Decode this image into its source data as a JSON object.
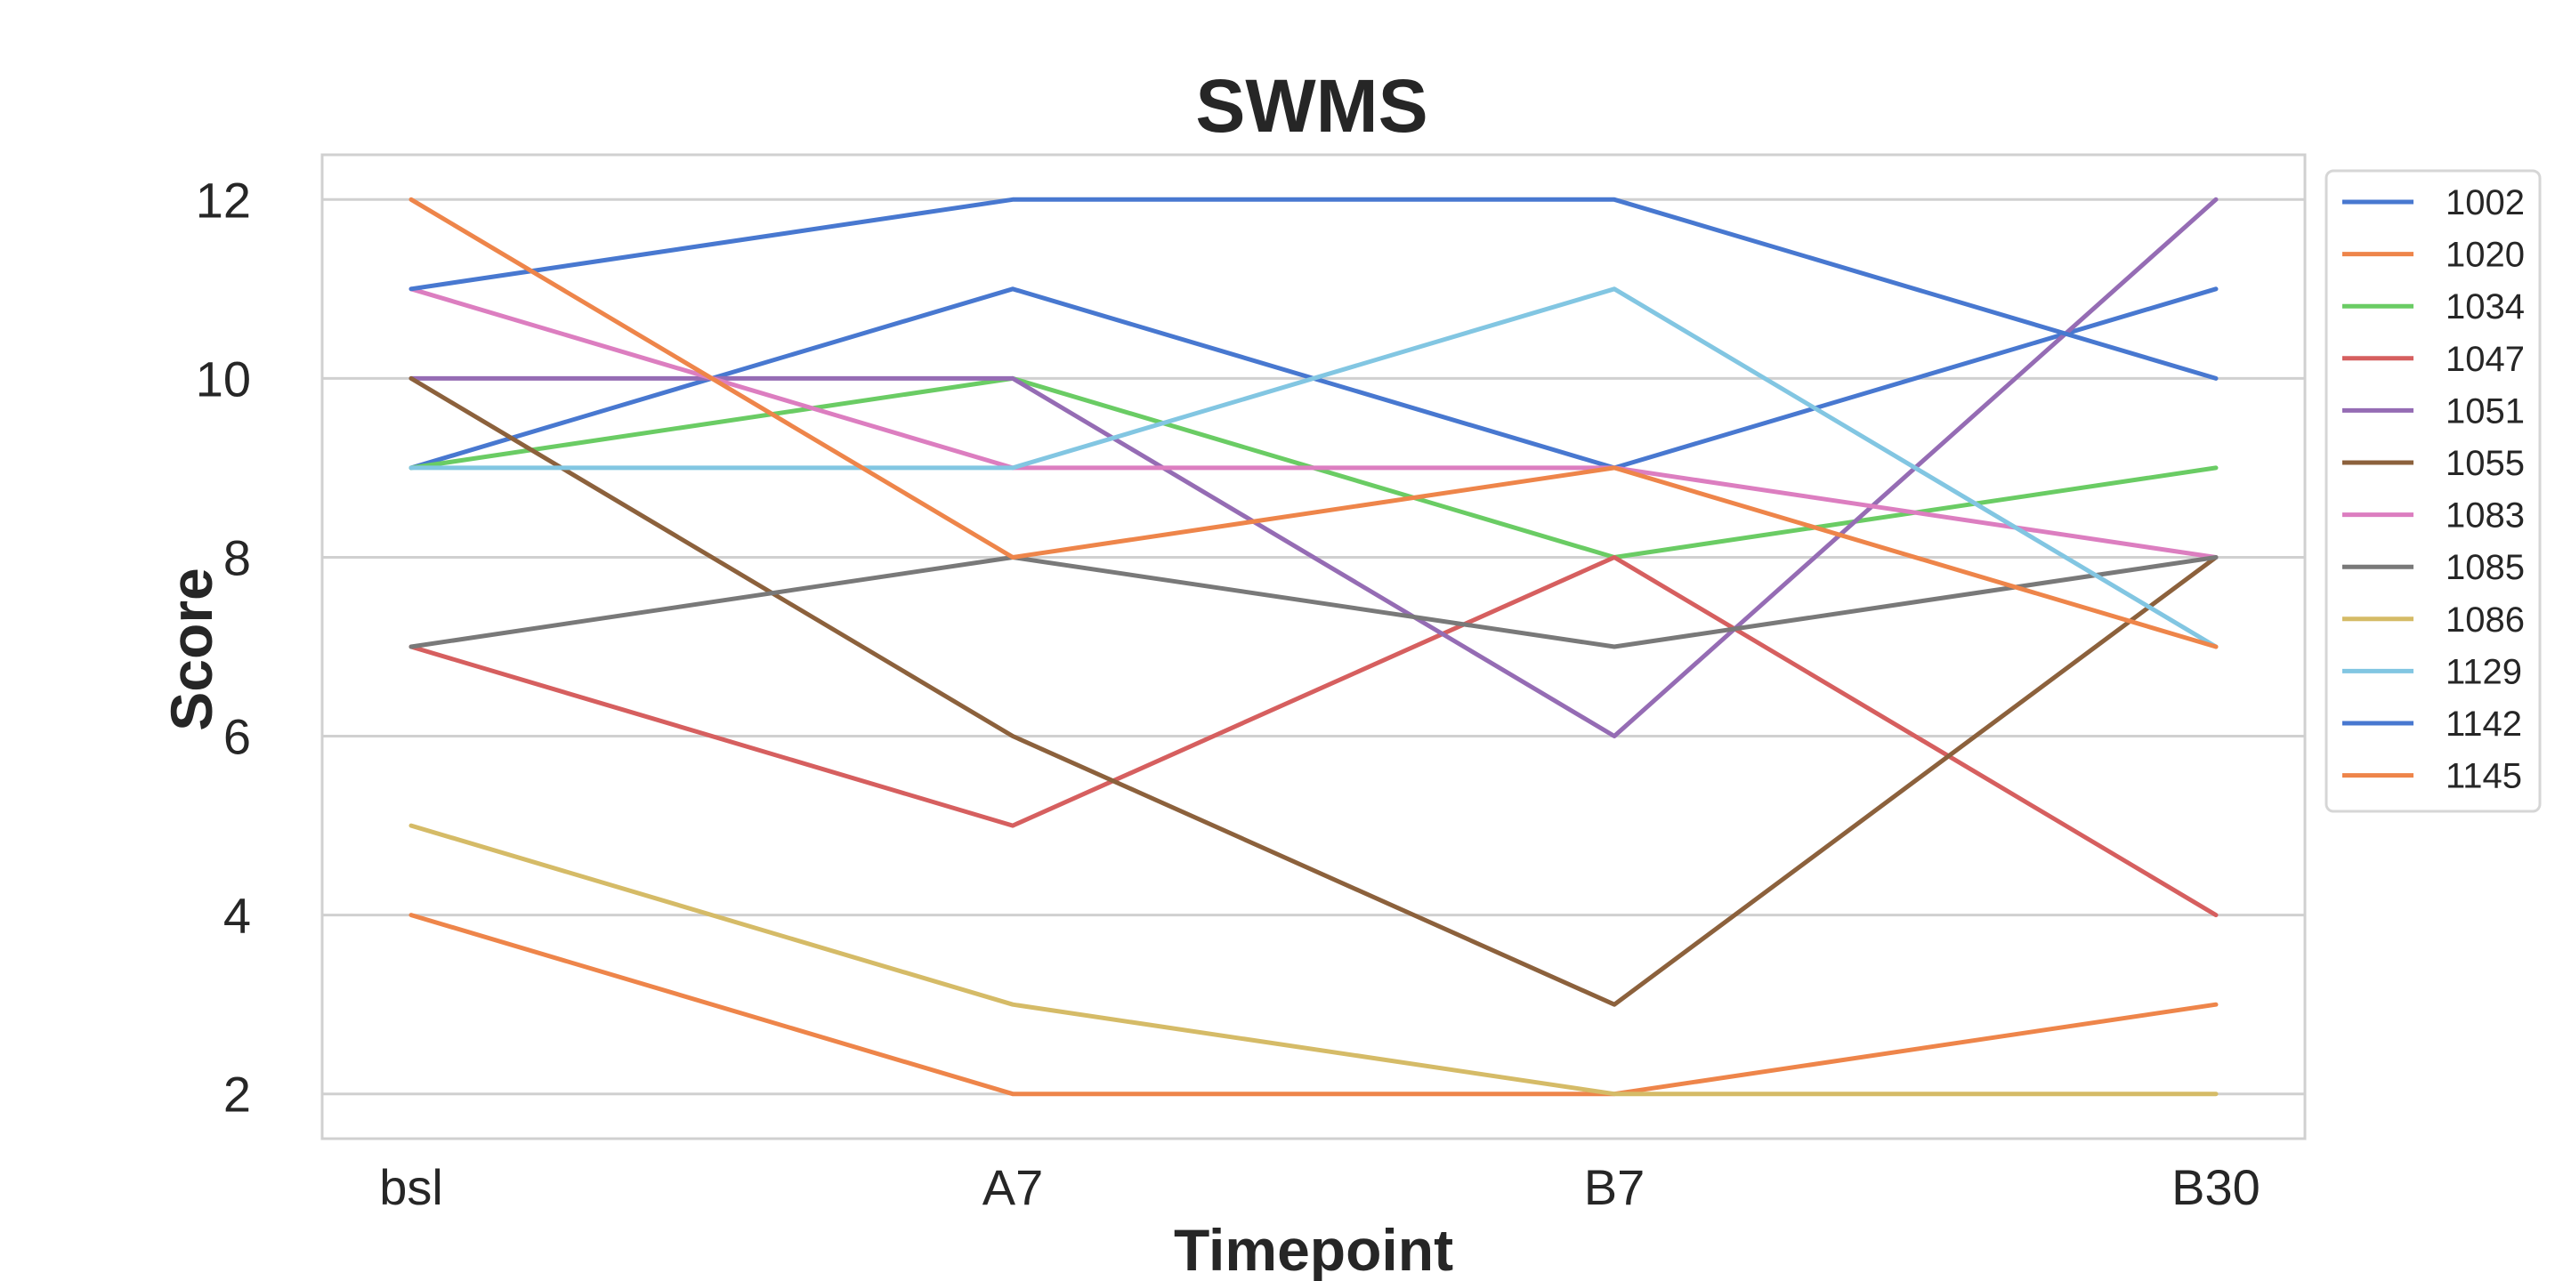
{
  "chart_data": {
    "type": "line",
    "title": "SWMS",
    "xlabel": "Timepoint",
    "ylabel": "Score",
    "categories": [
      "bsl",
      "A7",
      "B7",
      "B30"
    ],
    "ylim": [
      1.5,
      12.5
    ],
    "yticks": [
      2,
      4,
      6,
      8,
      10,
      12
    ],
    "grid": true,
    "legend_position": "right-outside-top",
    "series": [
      {
        "name": "1002",
        "color": "#4878d0",
        "values": [
          9,
          11,
          9,
          11
        ]
      },
      {
        "name": "1020",
        "color": "#ee854a",
        "values": [
          4,
          2,
          2,
          3
        ]
      },
      {
        "name": "1034",
        "color": "#6acc64",
        "values": [
          9,
          10,
          8,
          9
        ]
      },
      {
        "name": "1047",
        "color": "#d65f5f",
        "values": [
          7,
          5,
          8,
          4
        ]
      },
      {
        "name": "1051",
        "color": "#956cb4",
        "values": [
          10,
          10,
          6,
          12
        ]
      },
      {
        "name": "1055",
        "color": "#8c613c",
        "values": [
          10,
          6,
          3,
          8
        ]
      },
      {
        "name": "1083",
        "color": "#dc7ec0",
        "values": [
          11,
          9,
          9,
          8
        ]
      },
      {
        "name": "1085",
        "color": "#797979",
        "values": [
          7,
          8,
          7,
          8
        ]
      },
      {
        "name": "1086",
        "color": "#d5bb67",
        "values": [
          5,
          3,
          2,
          2
        ]
      },
      {
        "name": "1129",
        "color": "#82c6e2",
        "values": [
          9,
          9,
          11,
          7
        ]
      },
      {
        "name": "1142",
        "color": "#4878d0",
        "values": [
          11,
          12,
          12,
          10
        ]
      },
      {
        "name": "1145",
        "color": "#ee854a",
        "values": [
          12,
          8,
          9,
          7
        ]
      }
    ]
  }
}
